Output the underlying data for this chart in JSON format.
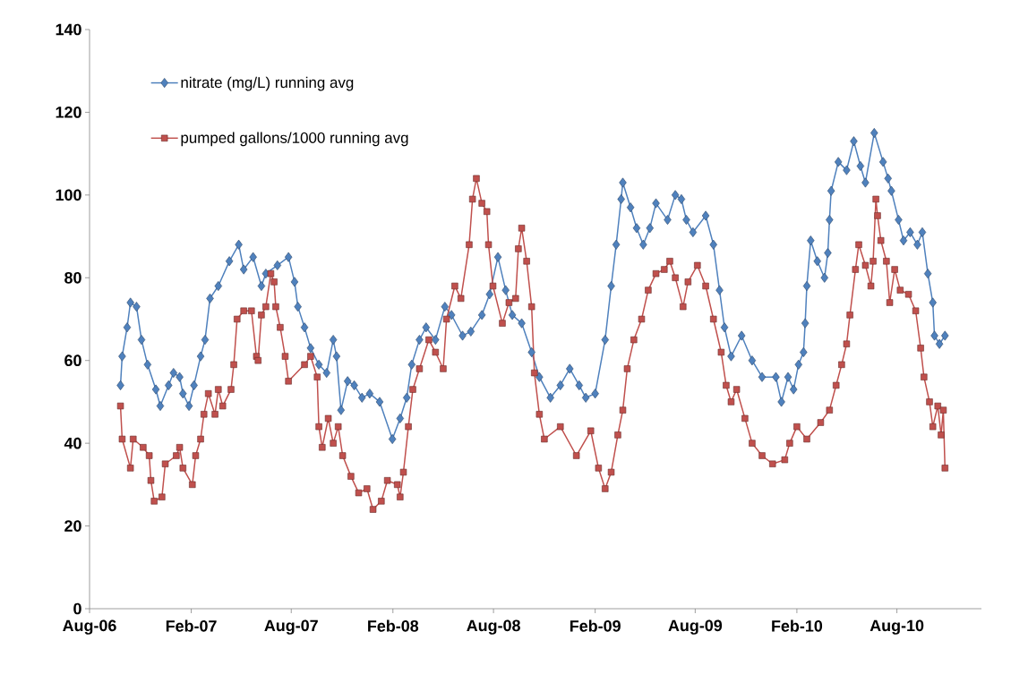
{
  "chart_data": {
    "type": "line",
    "xlim": [
      "2006-08-01",
      "2011-01-01"
    ],
    "ylim": [
      0,
      140
    ],
    "xticks": [
      {
        "value": "2006-08-01",
        "label": "Aug-06"
      },
      {
        "value": "2007-02-01",
        "label": "Feb-07"
      },
      {
        "value": "2007-08-01",
        "label": "Aug-07"
      },
      {
        "value": "2008-02-01",
        "label": "Feb-08"
      },
      {
        "value": "2008-08-01",
        "label": "Aug-08"
      },
      {
        "value": "2009-02-01",
        "label": "Feb-09"
      },
      {
        "value": "2009-08-01",
        "label": "Aug-09"
      },
      {
        "value": "2010-02-01",
        "label": "Feb-10"
      },
      {
        "value": "2010-08-01",
        "label": "Aug-10"
      }
    ],
    "yticks": [
      0,
      20,
      40,
      60,
      80,
      100,
      120,
      140
    ],
    "legend": "top left",
    "series": [
      {
        "name": "nitrate (mg/L) running avg",
        "color": "#4f81bd",
        "marker": "diamond",
        "x": [
          "2006-09-26",
          "2006-09-29",
          "2006-10-08",
          "2006-10-14",
          "2006-10-25",
          "2006-11-03",
          "2006-11-14",
          "2006-11-29",
          "2006-12-07",
          "2006-12-22",
          "2006-12-31",
          "2007-01-11",
          "2007-01-17",
          "2007-01-28",
          "2007-02-06",
          "2007-02-18",
          "2007-02-26",
          "2007-03-07",
          "2007-03-22",
          "2007-04-11",
          "2007-04-28",
          "2007-05-07",
          "2007-05-24",
          "2007-06-08",
          "2007-06-16",
          "2007-07-07",
          "2007-07-27",
          "2007-08-07",
          "2007-08-13",
          "2007-08-25",
          "2007-09-05",
          "2007-09-20",
          "2007-10-04",
          "2007-10-16",
          "2007-10-22",
          "2007-10-30",
          "2007-11-11",
          "2007-11-23",
          "2007-12-07",
          "2007-12-21",
          "2008-01-08",
          "2008-01-31",
          "2008-02-14",
          "2008-02-26",
          "2008-03-06",
          "2008-03-20",
          "2008-04-01",
          "2008-04-18",
          "2008-05-05",
          "2008-05-17",
          "2008-06-06",
          "2008-06-21",
          "2008-07-11",
          "2008-07-25",
          "2008-08-09",
          "2008-08-23",
          "2008-09-04",
          "2008-09-21",
          "2008-10-09",
          "2008-10-23",
          "2008-11-12",
          "2008-11-30",
          "2008-12-17",
          "2009-01-03",
          "2009-01-15",
          "2009-02-01",
          "2009-02-19",
          "2009-03-02",
          "2009-03-11",
          "2009-03-20",
          "2009-03-23",
          "2009-04-06",
          "2009-04-17",
          "2009-04-29",
          "2009-05-11",
          "2009-05-22",
          "2009-06-12",
          "2009-06-26",
          "2009-07-07",
          "2009-07-16",
          "2009-07-28",
          "2009-08-20",
          "2009-09-03",
          "2009-09-14",
          "2009-09-23",
          "2009-10-05",
          "2009-10-24",
          "2009-11-12",
          "2009-11-30",
          "2009-12-25",
          "2010-01-04",
          "2010-01-16",
          "2010-01-26",
          "2010-02-04",
          "2010-02-13",
          "2010-02-16",
          "2010-02-19",
          "2010-02-26",
          "2010-03-10",
          "2010-03-23",
          "2010-03-29",
          "2010-04-01",
          "2010-04-04",
          "2010-04-17",
          "2010-05-02",
          "2010-05-15",
          "2010-05-27",
          "2010-06-05",
          "2010-06-21",
          "2010-07-07",
          "2010-07-16",
          "2010-07-22",
          "2010-08-04",
          "2010-08-13",
          "2010-08-25",
          "2010-09-07",
          "2010-09-16",
          "2010-09-26",
          "2010-10-05",
          "2010-10-08",
          "2010-10-17",
          "2010-10-27"
        ],
        "values": [
          54,
          61,
          68,
          74,
          73,
          65,
          59,
          53,
          49,
          54,
          57,
          56,
          52,
          49,
          54,
          61,
          65,
          75,
          78,
          84,
          88,
          82,
          85,
          78,
          81,
          83,
          85,
          79,
          73,
          68,
          63,
          59,
          57,
          65,
          61,
          48,
          55,
          54,
          51,
          52,
          50,
          41,
          46,
          51,
          59,
          65,
          68,
          65,
          73,
          71,
          66,
          67,
          71,
          76,
          85,
          77,
          71,
          69,
          62,
          56,
          51,
          54,
          58,
          54,
          51,
          52,
          65,
          78,
          88,
          99,
          103,
          97,
          92,
          88,
          92,
          98,
          94,
          100,
          99,
          94,
          91,
          95,
          88,
          77,
          68,
          61,
          66,
          60,
          56,
          56,
          50,
          56,
          53,
          59,
          62,
          69,
          78,
          89,
          84,
          80,
          86,
          94,
          101,
          108,
          106,
          113,
          107,
          103,
          115,
          108,
          104,
          101,
          94,
          89,
          91,
          88,
          91,
          81,
          74,
          66,
          64,
          66
        ]
      },
      {
        "name": "pumped gallons/1000 running avg",
        "color": "#c0504d",
        "marker": "square",
        "x": [
          "2006-09-26",
          "2006-09-29",
          "2006-10-14",
          "2006-10-19",
          "2006-11-06",
          "2006-11-17",
          "2006-11-20",
          "2006-11-26",
          "2006-12-10",
          "2006-12-16",
          "2007-01-05",
          "2007-01-11",
          "2007-01-17",
          "2007-02-03",
          "2007-02-09",
          "2007-02-18",
          "2007-02-24",
          "2007-03-04",
          "2007-03-16",
          "2007-03-22",
          "2007-03-30",
          "2007-04-14",
          "2007-04-19",
          "2007-04-25",
          "2007-05-07",
          "2007-05-21",
          "2007-05-30",
          "2007-06-02",
          "2007-06-08",
          "2007-06-16",
          "2007-06-25",
          "2007-07-01",
          "2007-07-04",
          "2007-07-12",
          "2007-07-21",
          "2007-07-27",
          "2007-08-25",
          "2007-09-05",
          "2007-09-17",
          "2007-09-20",
          "2007-09-26",
          "2007-10-07",
          "2007-10-16",
          "2007-10-25",
          "2007-11-02",
          "2007-11-17",
          "2007-12-01",
          "2007-12-16",
          "2007-12-27",
          "2008-01-11",
          "2008-01-22",
          "2008-02-09",
          "2008-02-14",
          "2008-02-20",
          "2008-02-29",
          "2008-03-08",
          "2008-03-20",
          "2008-04-06",
          "2008-04-18",
          "2008-05-02",
          "2008-05-08",
          "2008-05-23",
          "2008-06-03",
          "2008-06-18",
          "2008-06-24",
          "2008-07-01",
          "2008-07-11",
          "2008-07-20",
          "2008-07-23",
          "2008-07-31",
          "2008-08-17",
          "2008-08-29",
          "2008-09-10",
          "2008-09-15",
          "2008-09-21",
          "2008-09-30",
          "2008-10-09",
          "2008-10-14",
          "2008-10-23",
          "2008-11-01",
          "2008-11-30",
          "2008-12-29",
          "2009-01-24",
          "2009-02-07",
          "2009-02-19",
          "2009-03-02",
          "2009-03-14",
          "2009-03-23",
          "2009-03-31",
          "2009-04-12",
          "2009-04-26",
          "2009-05-08",
          "2009-05-22",
          "2009-06-06",
          "2009-06-16",
          "2009-06-26",
          "2009-07-10",
          "2009-07-19",
          "2009-08-05",
          "2009-08-20",
          "2009-09-03",
          "2009-09-17",
          "2009-09-26",
          "2009-10-05",
          "2009-10-15",
          "2009-10-30",
          "2009-11-12",
          "2009-11-30",
          "2009-12-19",
          "2010-01-10",
          "2010-01-19",
          "2010-02-01",
          "2010-02-19",
          "2010-03-16",
          "2010-04-01",
          "2010-04-13",
          "2010-04-23",
          "2010-05-02",
          "2010-05-08",
          "2010-05-18",
          "2010-05-24",
          "2010-06-05",
          "2010-06-15",
          "2010-06-19",
          "2010-06-24",
          "2010-06-27",
          "2010-07-03",
          "2010-07-13",
          "2010-07-19",
          "2010-07-28",
          "2010-08-07",
          "2010-08-22",
          "2010-09-04",
          "2010-09-13",
          "2010-09-19",
          "2010-09-29",
          "2010-10-05",
          "2010-10-14",
          "2010-10-20",
          "2010-10-24",
          "2010-10-27"
        ],
        "values": [
          49,
          41,
          34,
          41,
          39,
          37,
          31,
          26,
          27,
          35,
          37,
          39,
          34,
          30,
          37,
          41,
          47,
          52,
          47,
          53,
          49,
          53,
          59,
          70,
          72,
          72,
          61,
          60,
          71,
          73,
          81,
          79,
          73,
          68,
          61,
          55,
          59,
          61,
          56,
          44,
          39,
          46,
          40,
          44,
          37,
          32,
          28,
          29,
          24,
          26,
          31,
          30,
          27,
          33,
          44,
          53,
          58,
          65,
          62,
          58,
          70,
          78,
          75,
          88,
          99,
          104,
          98,
          96,
          88,
          78,
          69,
          74,
          75,
          87,
          92,
          84,
          73,
          57,
          47,
          41,
          44,
          37,
          43,
          34,
          29,
          33,
          42,
          48,
          58,
          65,
          70,
          77,
          81,
          82,
          84,
          80,
          73,
          79,
          83,
          78,
          70,
          62,
          54,
          50,
          53,
          46,
          40,
          37,
          35,
          36,
          40,
          44,
          41,
          45,
          48,
          54,
          59,
          64,
          71,
          82,
          88,
          83,
          78,
          84,
          99,
          95,
          89,
          84,
          74,
          82,
          77,
          76,
          72,
          63,
          56,
          50,
          44,
          49,
          42,
          48,
          34
        ]
      }
    ]
  }
}
